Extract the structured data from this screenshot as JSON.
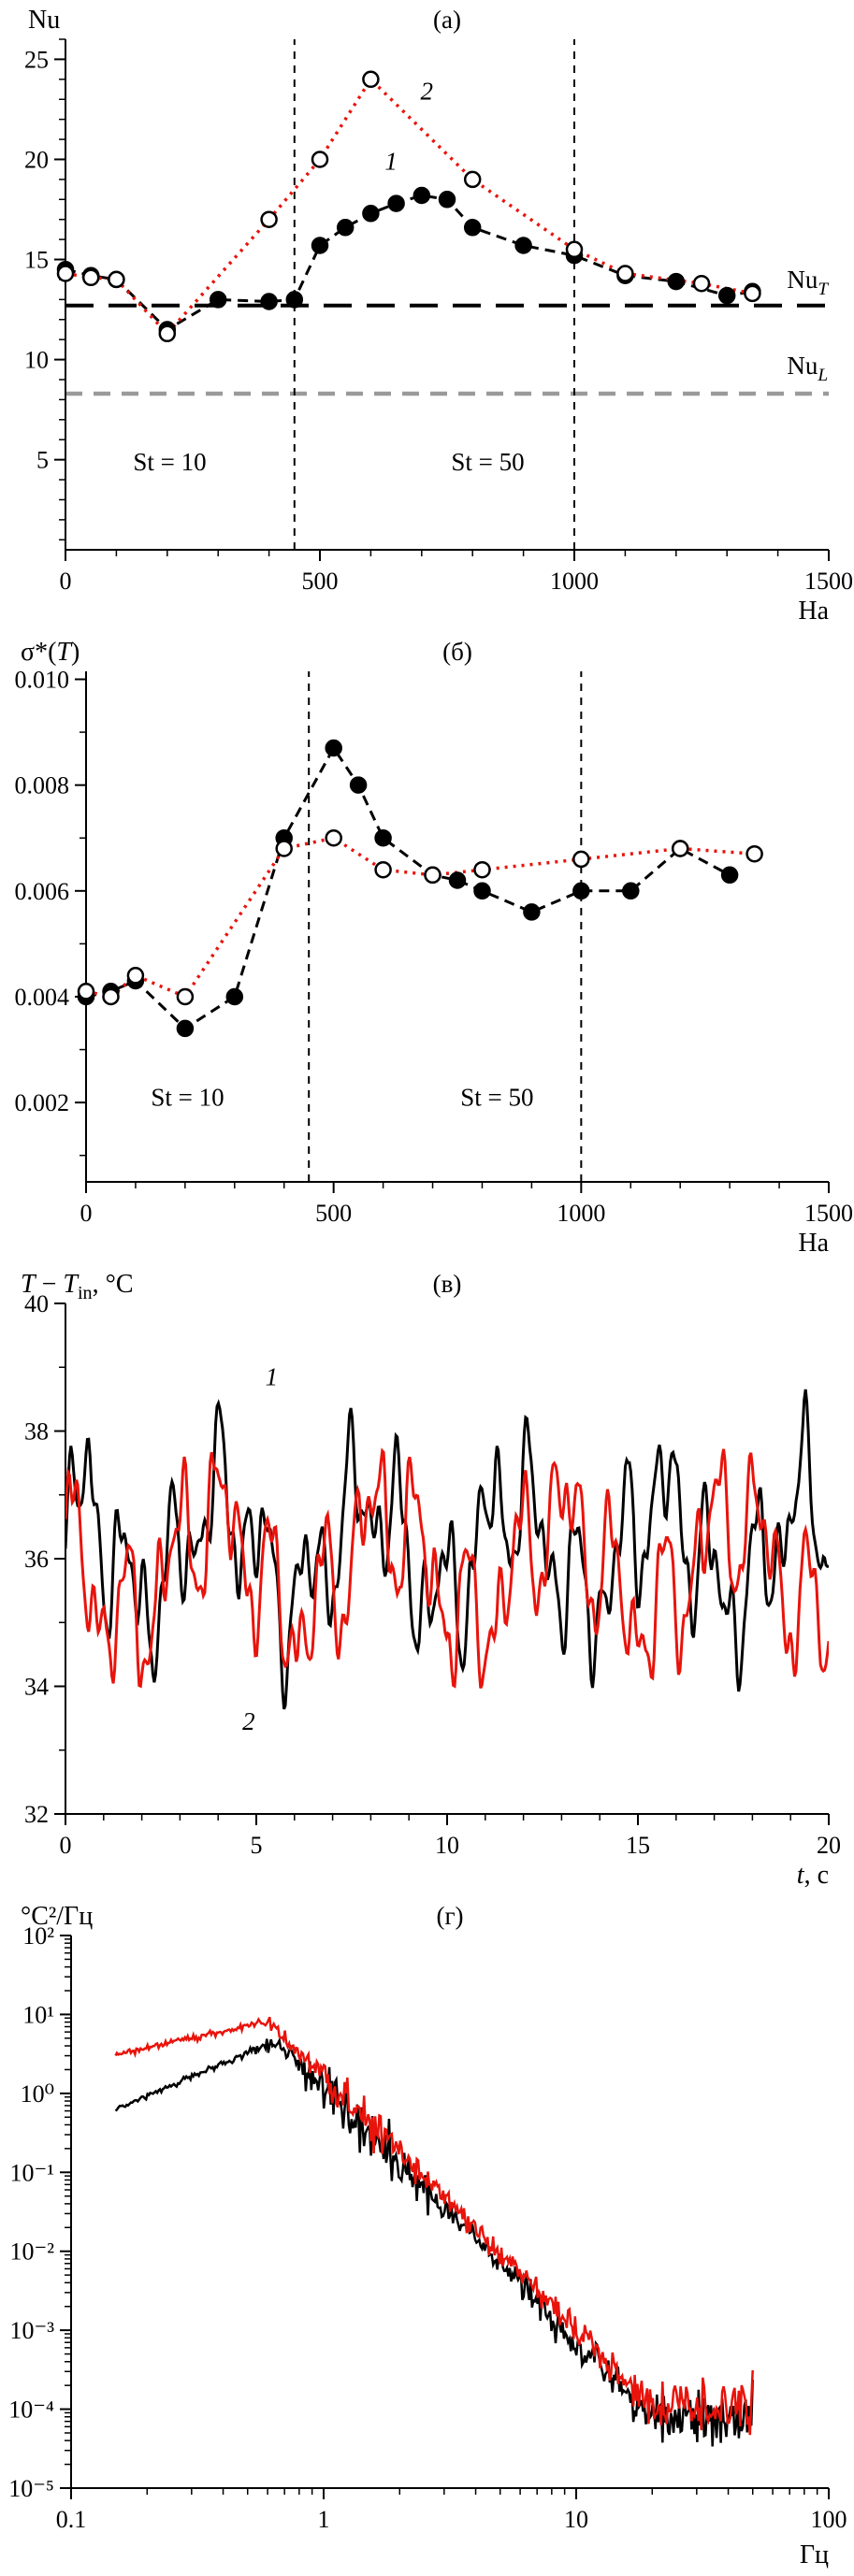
{
  "chart_data": {
    "type": "line",
    "colors": {
      "black": "#000000",
      "red": "#e8140c",
      "gray": "#9a9a9a"
    },
    "panels": [
      {
        "id": "a",
        "letter": "(а)",
        "axis_title": "Nu",
        "x_axis_label": "На",
        "x_range": [
          0,
          1500
        ],
        "y_range": [
          0.5,
          26
        ],
        "x_ticks": {
          "values": [
            0,
            500,
            1000,
            1500
          ],
          "labels": [
            "0",
            "500",
            "1000",
            "1500"
          ]
        },
        "y_ticks": {
          "values": [
            5,
            10,
            15,
            20,
            25
          ],
          "labels": [
            "5",
            "10",
            "15",
            "20",
            "25"
          ]
        },
        "x_minor_step": 100,
        "y_minor_step": 1,
        "vlines": [
          {
            "x": 450
          },
          {
            "x": 1000
          }
        ],
        "hlines": [
          {
            "y": 12.7,
            "color": "#000000",
            "dash": "30 16",
            "width": 4,
            "name": "NuT-reference-line"
          },
          {
            "y": 8.3,
            "color": "#9a9a9a",
            "dash": "18 12",
            "width": 4.5,
            "name": "NuL-reference-line"
          }
        ],
        "series": [
          {
            "name": "nusselt-series-1-filled",
            "color": "#000000",
            "dash": "11 7",
            "width": 3,
            "marker": "filled",
            "x": [
              0,
              50,
              100,
              200,
              300,
              400,
              450,
              500,
              550,
              600,
              650,
              700,
              750,
              800,
              900,
              1000,
              1100,
              1200,
              1300,
              1350
            ],
            "y": [
              14.5,
              14.2,
              14.0,
              11.5,
              13.0,
              12.9,
              13.0,
              15.7,
              16.6,
              17.3,
              17.8,
              18.2,
              18.0,
              16.6,
              15.7,
              15.2,
              14.2,
              13.9,
              13.2,
              13.4
            ]
          },
          {
            "name": "nusselt-series-2-open",
            "color": "#e8140c",
            "dash": "3 6",
            "width": 3.5,
            "marker": "open",
            "x": [
              0,
              50,
              100,
              200,
              400,
              500,
              600,
              800,
              1000,
              1100,
              1250,
              1350
            ],
            "y": [
              14.3,
              14.1,
              14.0,
              11.3,
              17.0,
              20.0,
              24.0,
              19.0,
              15.5,
              14.3,
              13.8,
              13.3
            ]
          }
        ],
        "annotations": [
          {
            "at": [
              205,
              4.9
            ],
            "text": "St = 10",
            "anchor": "middle",
            "size": 27
          },
          {
            "at": [
              830,
              4.9
            ],
            "text": "St = 50",
            "anchor": "middle",
            "size": 27
          },
          {
            "at": [
              640,
              19.9
            ],
            "text": "1",
            "italic": true,
            "anchor": "middle",
            "size": 27
          },
          {
            "at": [
              710,
              23.4
            ],
            "text": "2",
            "italic": true,
            "anchor": "middle",
            "size": 27
          },
          {
            "at": [
              1418,
              14.0
            ],
            "parts": [
              {
                "t": "Nu"
              },
              {
                "t": "T",
                "sub": true,
                "italic": true
              }
            ],
            "anchor": "start",
            "size": 27
          },
          {
            "at": [
              1418,
              9.7
            ],
            "parts": [
              {
                "t": "Nu"
              },
              {
                "t": "L",
                "sub": true,
                "italic": true
              }
            ],
            "anchor": "start",
            "size": 27
          }
        ]
      },
      {
        "id": "b",
        "letter": "(б)",
        "axis_title_parts": [
          {
            "t": "σ*("
          },
          {
            "t": "T",
            "italic": true
          },
          {
            "t": ")"
          }
        ],
        "x_axis_label": "На",
        "x_range": [
          0,
          1500
        ],
        "y_range": [
          0.0005,
          0.01015
        ],
        "x_ticks": {
          "values": [
            0,
            500,
            1000,
            1500
          ],
          "labels": [
            "0",
            "500",
            "1000",
            "1500"
          ]
        },
        "y_ticks": {
          "values": [
            0.002,
            0.004,
            0.006,
            0.008,
            0.01
          ],
          "labels": [
            "0.002",
            "0.004",
            "0.006",
            "0.008",
            "0.010"
          ]
        },
        "x_minor_step": 100,
        "y_minor_step": 0.001,
        "vlines": [
          {
            "x": 450
          },
          {
            "x": 1000
          }
        ],
        "hlines": [],
        "series": [
          {
            "name": "sigma-series-1-filled",
            "color": "#000000",
            "dash": "11 7",
            "width": 3,
            "marker": "filled",
            "x": [
              0,
              50,
              100,
              200,
              300,
              400,
              500,
              550,
              600,
              700,
              750,
              800,
              900,
              1000,
              1100,
              1200,
              1300
            ],
            "y": [
              0.004,
              0.0041,
              0.0043,
              0.0034,
              0.004,
              0.007,
              0.0087,
              0.008,
              0.007,
              0.0063,
              0.0062,
              0.006,
              0.0056,
              0.006,
              0.006,
              0.0068,
              0.0063
            ]
          },
          {
            "name": "sigma-series-2-open",
            "color": "#e8140c",
            "dash": "3 6",
            "width": 3.5,
            "marker": "open",
            "x": [
              0,
              50,
              100,
              200,
              400,
              500,
              600,
              700,
              800,
              1000,
              1200,
              1350
            ],
            "y": [
              0.0041,
              0.004,
              0.0044,
              0.004,
              0.0068,
              0.007,
              0.0064,
              0.0063,
              0.0064,
              0.0066,
              0.0068,
              0.0067
            ]
          }
        ],
        "annotations": [
          {
            "at": [
              205,
              0.0021
            ],
            "text": "St = 10",
            "anchor": "middle",
            "size": 27
          },
          {
            "at": [
              830,
              0.0021
            ],
            "text": "St = 50",
            "anchor": "middle",
            "size": 27
          }
        ]
      },
      {
        "id": "v",
        "letter": "(в)",
        "axis_title_parts": [
          {
            "t": "T",
            "italic": true
          },
          {
            "t": " − "
          },
          {
            "t": "T",
            "italic": true
          },
          {
            "t": "in",
            "sub": true
          },
          {
            "t": ", °C"
          }
        ],
        "x_axis_label_parts": [
          {
            "t": "t",
            "italic": true
          },
          {
            "t": ", с"
          }
        ],
        "x_range": [
          0,
          20
        ],
        "y_range": [
          32,
          40
        ],
        "x_ticks": {
          "values": [
            0,
            5,
            10,
            15,
            20
          ],
          "labels": [
            "0",
            "5",
            "10",
            "15",
            "20"
          ]
        },
        "y_ticks": {
          "values": [
            32,
            34,
            36,
            38,
            40
          ],
          "labels": [
            "32",
            "34",
            "36",
            "38",
            "40"
          ]
        },
        "x_minor_step": 1,
        "y_minor_step": 1,
        "clip": true,
        "vlines": [],
        "hlines": [],
        "series": [
          {
            "name": "temperature-signal-1",
            "color": "#000000",
            "width": 3,
            "synth": {
              "kind": "waves",
              "seed": 9,
              "n": 560,
              "t_max": 20,
              "mean": 36.15,
              "components": [
                [
                  0.8,
                  0.26
                ],
                [
                  0.75,
                  0.85
                ],
                [
                  0.6,
                  1.5
                ],
                [
                  0.4,
                  2.6
                ],
                [
                  0.25,
                  4.2
                ]
              ],
              "noise": 0.16
            }
          },
          {
            "name": "temperature-signal-2",
            "color": "#e8140c",
            "width": 3,
            "synth": {
              "kind": "waves",
              "seed": 27,
              "n": 560,
              "t_max": 20,
              "mean": 35.85,
              "components": [
                [
                  0.85,
                  0.22
                ],
                [
                  0.7,
                  0.78
                ],
                [
                  0.65,
                  1.35
                ],
                [
                  0.4,
                  2.9
                ],
                [
                  0.22,
                  4.6
                ]
              ],
              "noise": 0.16
            }
          }
        ],
        "annotations": [
          {
            "at": [
              5.4,
              38.85
            ],
            "text": "1",
            "italic": true,
            "anchor": "middle",
            "size": 27
          },
          {
            "at": [
              4.8,
              33.45
            ],
            "text": "2",
            "italic": true,
            "anchor": "middle",
            "size": 27
          }
        ]
      },
      {
        "id": "g",
        "letter": "(г)",
        "axis_title": "°C²/Гц",
        "x_axis_label": "Гц",
        "xlog": true,
        "ylog": true,
        "x_range": [
          0.1,
          100
        ],
        "y_range": [
          1e-05,
          100
        ],
        "x_ticks": {
          "values": [
            0.1,
            1,
            10,
            100
          ],
          "labels": [
            "0.1",
            "1",
            "10",
            "100"
          ]
        },
        "y_ticks": {
          "values": [
            100,
            10,
            1,
            0.1,
            0.01,
            0.001,
            0.0001,
            1e-05
          ],
          "labels": [
            "10²",
            "10¹",
            "10⁰",
            "10⁻¹",
            "10⁻²",
            "10⁻³",
            "10⁻⁴",
            "10⁻⁵"
          ]
        },
        "clip": true,
        "vlines": [],
        "hlines": [],
        "series": [
          {
            "name": "power-spectrum-1",
            "color": "#000000",
            "width": 2.5,
            "synth": {
              "kind": "spectrum",
              "seed": 4,
              "n": 460,
              "f_min": 0.15,
              "f_max": 50,
              "plateau": 0.62,
              "peak_f": 0.65,
              "peak_v": 4.6,
              "slope": -3.2,
              "floor": 8e-05,
              "noise_low": 0.05,
              "noise_high": 0.55,
              "spike": 0.45,
              "spike_f": 1.4
            }
          },
          {
            "name": "power-spectrum-2",
            "color": "#e8140c",
            "width": 2.5,
            "synth": {
              "kind": "spectrum",
              "seed": 21,
              "n": 460,
              "f_min": 0.15,
              "f_max": 50,
              "plateau": 3.1,
              "peak_f": 0.6,
              "peak_v": 8.2,
              "slope": -3.2,
              "floor": 0.00011,
              "noise_low": 0.05,
              "noise_high": 0.5,
              "spike": 0.3,
              "spike_f": 1.3
            }
          }
        ],
        "annotations": []
      }
    ]
  }
}
